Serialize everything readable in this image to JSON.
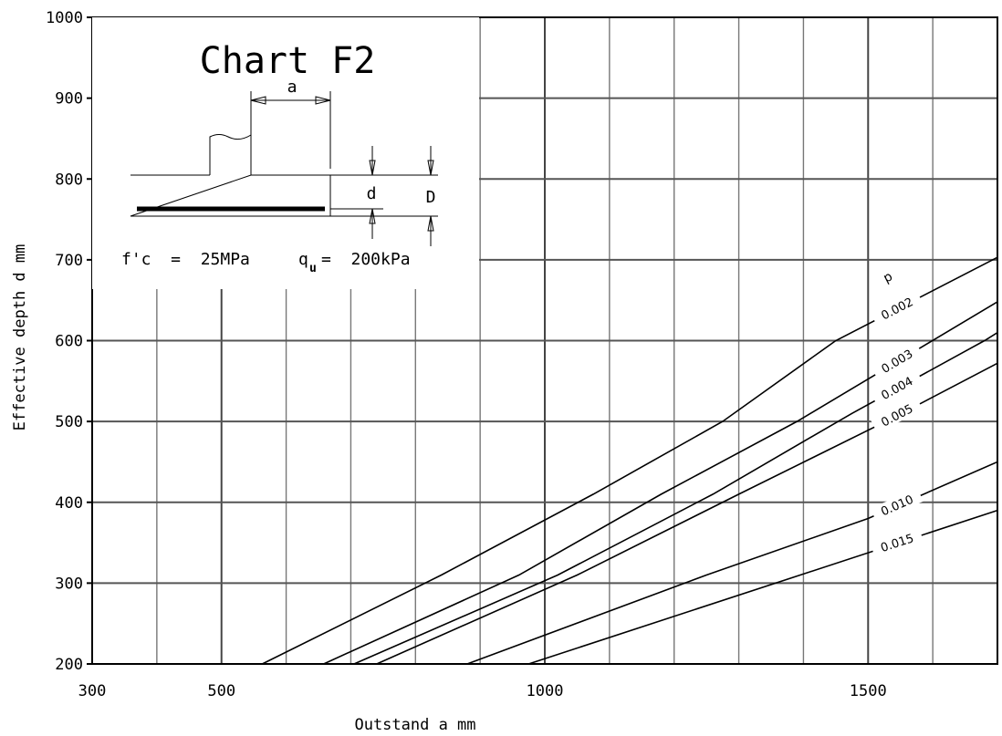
{
  "chart_data": {
    "type": "line",
    "title": "Chart F2",
    "xlabel": "Outstand a mm",
    "ylabel": "Effective depth d mm",
    "xlim": [
      300,
      1700
    ],
    "ylim": [
      200,
      1000
    ],
    "x_ticks": [
      "300",
      "500",
      "1000",
      "1500"
    ],
    "y_ticks": [
      "200",
      "300",
      "400",
      "500",
      "600",
      "700",
      "800",
      "900",
      "1000"
    ],
    "grid": true,
    "legend_title": "p",
    "series": [
      {
        "name": "0.002",
        "points": [
          [
            563,
            200
          ],
          [
            840,
            310
          ],
          [
            1075,
            410
          ],
          [
            1275,
            500
          ],
          [
            1450,
            600
          ],
          [
            1700,
            703
          ]
        ]
      },
      {
        "name": "0.003",
        "points": [
          [
            658,
            200
          ],
          [
            960,
            310
          ],
          [
            1180,
            410
          ],
          [
            1390,
            500
          ],
          [
            1700,
            648
          ]
        ]
      },
      {
        "name": "0.004",
        "points": [
          [
            705,
            200
          ],
          [
            1020,
            310
          ],
          [
            1260,
            410
          ],
          [
            1475,
            510
          ],
          [
            1680,
            600
          ],
          [
            1700,
            610
          ]
        ]
      },
      {
        "name": "0.005",
        "points": [
          [
            740,
            200
          ],
          [
            1050,
            310
          ],
          [
            1300,
            410
          ],
          [
            1540,
            505
          ],
          [
            1700,
            572
          ]
        ]
      },
      {
        "name": "0.010",
        "points": [
          [
            880,
            200
          ],
          [
            1250,
            310
          ],
          [
            1500,
            380
          ],
          [
            1700,
            450
          ]
        ]
      },
      {
        "name": "0.015",
        "points": [
          [
            975,
            200
          ],
          [
            1395,
            310
          ],
          [
            1700,
            390
          ]
        ]
      }
    ]
  },
  "inset": {
    "dim_a": "a",
    "dim_d": "d",
    "dim_D": "D",
    "fc_text": "f'c  =  25MPa",
    "qu_text": "q",
    "qu_sub": "u",
    "qu_value": "=  200kPa"
  }
}
